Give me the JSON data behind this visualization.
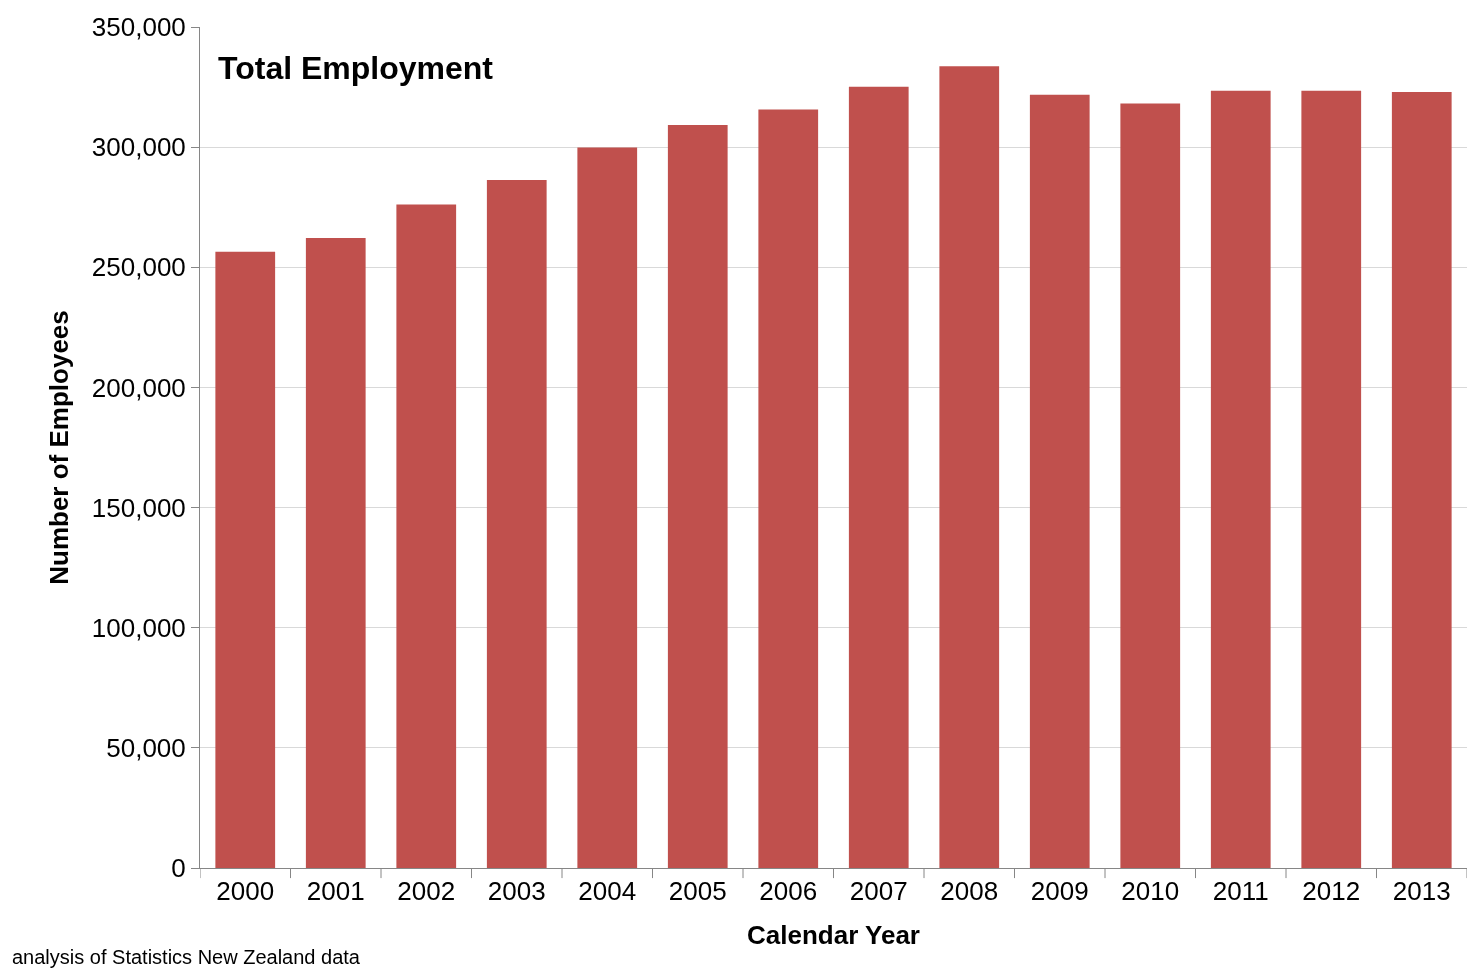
{
  "chart_data": {
    "type": "bar",
    "title": "Total Employment",
    "xlabel": "Calendar Year",
    "ylabel": "Number of Employees",
    "categories": [
      "2000",
      "2001",
      "2002",
      "2003",
      "2004",
      "2005",
      "2006",
      "2007",
      "2008",
      "2009",
      "2010",
      "2011",
      "2012",
      "2013"
    ],
    "values": [
      256500,
      262200,
      276100,
      286300,
      299800,
      309200,
      315700,
      325100,
      333700,
      321800,
      318200,
      323500,
      323500,
      323000
    ],
    "color": "#c0504d",
    "ylim": [
      0,
      350000
    ],
    "yticks": [
      {
        "value": 0,
        "label": "0"
      },
      {
        "value": 50000,
        "label": "50,000"
      },
      {
        "value": 100000,
        "label": "100,000"
      },
      {
        "value": 150000,
        "label": "150,000"
      },
      {
        "value": 200000,
        "label": "200,000"
      },
      {
        "value": 250000,
        "label": "250,000"
      },
      {
        "value": 300000,
        "label": "300,000"
      },
      {
        "value": 350000,
        "label": "350,000"
      }
    ],
    "grid": "y",
    "annotations": [
      "analysis of Statistics New Zealand data"
    ]
  }
}
